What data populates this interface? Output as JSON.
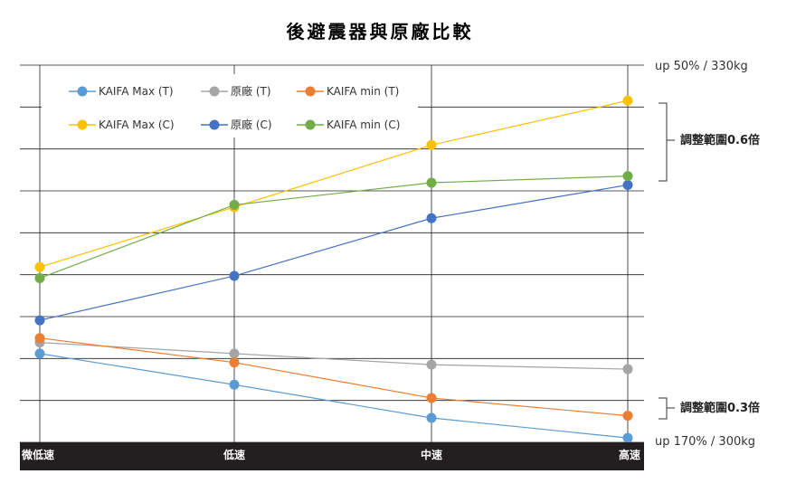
{
  "chart_data": {
    "type": "line",
    "title": "後避震器與原廠比較",
    "categories": [
      "微低速",
      "低速",
      "中速",
      "高速"
    ],
    "series": [
      {
        "name": "KAIFA Max (T)",
        "color": "#5b9bd5",
        "values": [
          -0.5,
          -1.2,
          -1.95,
          -2.4
        ]
      },
      {
        "name": "原廠 (T)",
        "color": "#a5a5a5",
        "values": [
          -0.25,
          -0.5,
          -0.75,
          -0.85
        ]
      },
      {
        "name": "KAIFA min (T)",
        "color": "#ed7d31",
        "values": [
          -0.15,
          -0.7,
          -1.5,
          -1.9
        ]
      },
      {
        "name": "KAIFA Max (C)",
        "color": "#ffc000",
        "values": [
          1.45,
          2.8,
          4.2,
          5.2
        ]
      },
      {
        "name": "原廠 (C)",
        "color": "#4472c4",
        "values": [
          0.25,
          1.25,
          2.55,
          3.3
        ]
      },
      {
        "name": "KAIFA min (C)",
        "color": "#70ad47",
        "values": [
          1.2,
          2.85,
          3.35,
          3.5
        ]
      }
    ],
    "ylim": [
      -2.5,
      6
    ],
    "grid": true,
    "legend": "top-left"
  },
  "annotations": {
    "top_label": "up 50% / 330kg",
    "bottom_label": "up 170% / 300kg",
    "upper_range": "調整範圍0.6倍",
    "lower_range": "調整範圍0.3倍"
  }
}
